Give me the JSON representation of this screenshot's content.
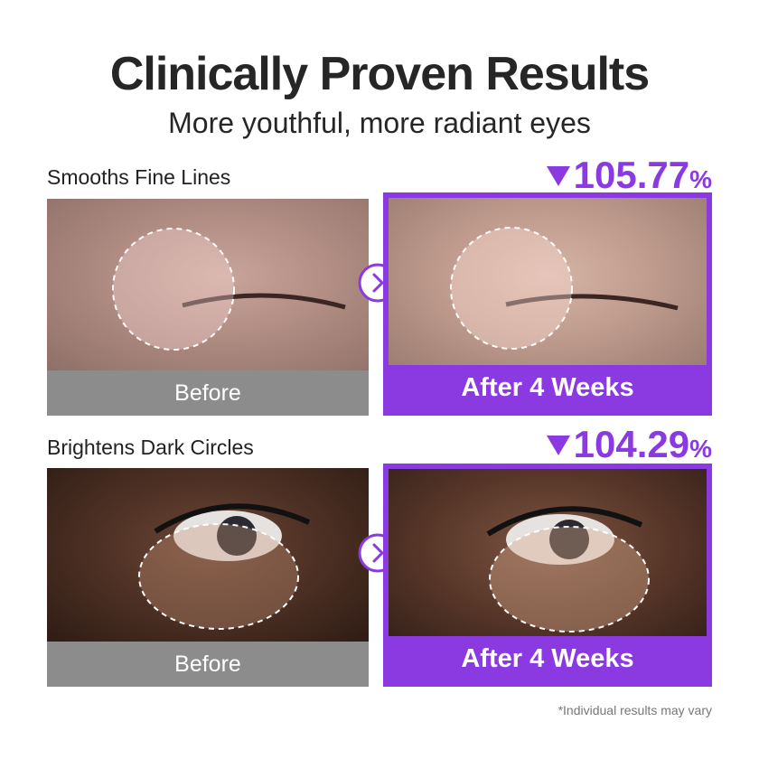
{
  "header": {
    "title": "Clinically Proven Results",
    "subtitle": "More youthful, more radiant eyes"
  },
  "rows": [
    {
      "label": "Smooths Fine Lines",
      "stat": "105.77",
      "unit": "%",
      "before": "Before",
      "after": "After 4 Weeks"
    },
    {
      "label": "Brightens Dark Circles",
      "stat": "104.29",
      "unit": "%",
      "before": "Before",
      "after": "After 4 Weeks"
    }
  ],
  "footnote": "*Individual results may vary"
}
